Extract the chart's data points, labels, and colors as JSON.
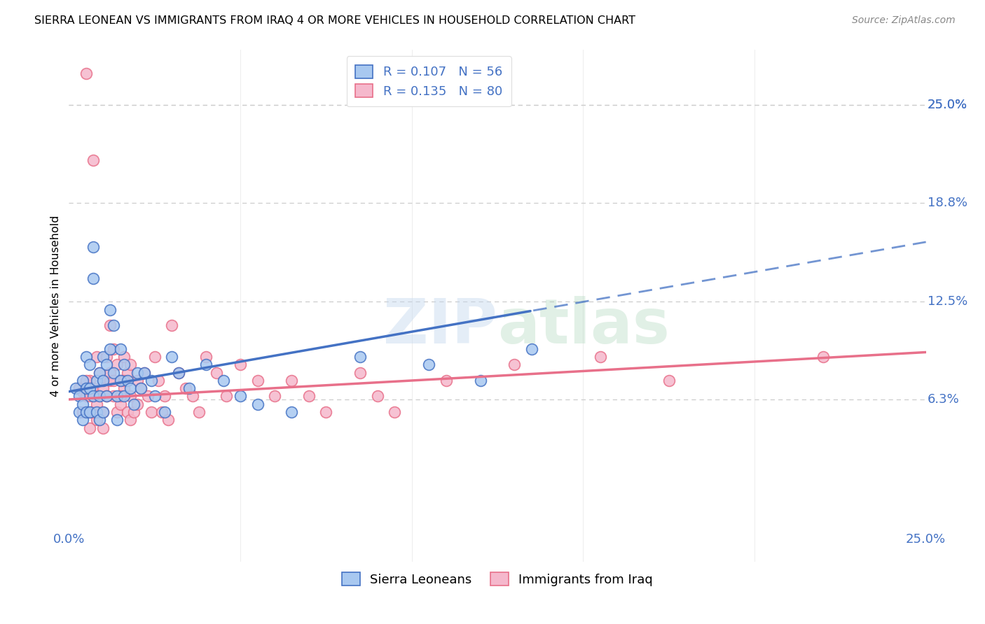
{
  "title": "SIERRA LEONEAN VS IMMIGRANTS FROM IRAQ 4 OR MORE VEHICLES IN HOUSEHOLD CORRELATION CHART",
  "source": "Source: ZipAtlas.com",
  "ylabel": "4 or more Vehicles in Household",
  "ytick_labels": [
    "25.0%",
    "18.8%",
    "12.5%",
    "6.3%"
  ],
  "ytick_values": [
    0.25,
    0.188,
    0.125,
    0.063
  ],
  "xrange": [
    0.0,
    0.25
  ],
  "yrange": [
    -0.04,
    0.285
  ],
  "legend_r1": "R = 0.107",
  "legend_n1": "N = 56",
  "legend_r2": "R = 0.135",
  "legend_n2": "N = 80",
  "color_blue_fill": "#a8c8f0",
  "color_pink_fill": "#f5b8cc",
  "color_blue_edge": "#4472c4",
  "color_pink_edge": "#e8708a",
  "color_axis_labels": "#4472c4",
  "watermark_color": "#ddeeff",
  "sl_line_intercept": 0.068,
  "sl_line_slope": 0.38,
  "sl_line_solid_end": 0.135,
  "iraq_line_intercept": 0.063,
  "iraq_line_slope": 0.12,
  "sierra_x": [
    0.002,
    0.003,
    0.003,
    0.004,
    0.004,
    0.004,
    0.005,
    0.005,
    0.005,
    0.006,
    0.006,
    0.006,
    0.007,
    0.007,
    0.007,
    0.008,
    0.008,
    0.009,
    0.009,
    0.009,
    0.01,
    0.01,
    0.01,
    0.011,
    0.011,
    0.012,
    0.012,
    0.013,
    0.013,
    0.014,
    0.014,
    0.015,
    0.015,
    0.016,
    0.016,
    0.017,
    0.018,
    0.019,
    0.02,
    0.021,
    0.022,
    0.024,
    0.025,
    0.028,
    0.03,
    0.032,
    0.035,
    0.04,
    0.045,
    0.05,
    0.055,
    0.065,
    0.085,
    0.105,
    0.12,
    0.135
  ],
  "sierra_y": [
    0.07,
    0.065,
    0.055,
    0.075,
    0.06,
    0.05,
    0.09,
    0.07,
    0.055,
    0.085,
    0.07,
    0.055,
    0.16,
    0.14,
    0.065,
    0.075,
    0.055,
    0.08,
    0.065,
    0.05,
    0.09,
    0.075,
    0.055,
    0.085,
    0.065,
    0.12,
    0.095,
    0.11,
    0.08,
    0.065,
    0.05,
    0.095,
    0.075,
    0.085,
    0.065,
    0.075,
    0.07,
    0.06,
    0.08,
    0.07,
    0.08,
    0.075,
    0.065,
    0.055,
    0.09,
    0.08,
    0.07,
    0.085,
    0.075,
    0.065,
    0.06,
    0.055,
    0.09,
    0.085,
    0.075,
    0.095
  ],
  "iraq_x": [
    0.003,
    0.004,
    0.004,
    0.005,
    0.005,
    0.006,
    0.006,
    0.006,
    0.007,
    0.007,
    0.007,
    0.008,
    0.008,
    0.008,
    0.009,
    0.009,
    0.01,
    0.01,
    0.01,
    0.011,
    0.011,
    0.012,
    0.012,
    0.013,
    0.013,
    0.014,
    0.014,
    0.015,
    0.015,
    0.016,
    0.016,
    0.017,
    0.017,
    0.018,
    0.018,
    0.018,
    0.019,
    0.02,
    0.02,
    0.021,
    0.022,
    0.023,
    0.024,
    0.025,
    0.026,
    0.027,
    0.028,
    0.029,
    0.03,
    0.032,
    0.034,
    0.036,
    0.038,
    0.04,
    0.043,
    0.046,
    0.05,
    0.055,
    0.06,
    0.065,
    0.07,
    0.075,
    0.085,
    0.09,
    0.095,
    0.11,
    0.13,
    0.155,
    0.175,
    0.22,
    0.005,
    0.006,
    0.007,
    0.008,
    0.01,
    0.011,
    0.012,
    0.013,
    0.015,
    0.016
  ],
  "iraq_y": [
    0.07,
    0.068,
    0.055,
    0.27,
    0.065,
    0.075,
    0.055,
    0.045,
    0.215,
    0.07,
    0.055,
    0.09,
    0.065,
    0.05,
    0.08,
    0.055,
    0.075,
    0.055,
    0.045,
    0.09,
    0.065,
    0.11,
    0.075,
    0.095,
    0.065,
    0.085,
    0.055,
    0.075,
    0.06,
    0.09,
    0.07,
    0.08,
    0.055,
    0.085,
    0.065,
    0.05,
    0.055,
    0.075,
    0.06,
    0.07,
    0.08,
    0.065,
    0.055,
    0.09,
    0.075,
    0.055,
    0.065,
    0.05,
    0.11,
    0.08,
    0.07,
    0.065,
    0.055,
    0.09,
    0.08,
    0.065,
    0.085,
    0.075,
    0.065,
    0.075,
    0.065,
    0.055,
    0.08,
    0.065,
    0.055,
    0.075,
    0.085,
    0.09,
    0.075,
    0.09,
    0.075,
    0.065,
    0.055,
    0.06,
    0.07,
    0.065,
    0.08,
    0.075,
    0.065,
    0.075
  ]
}
